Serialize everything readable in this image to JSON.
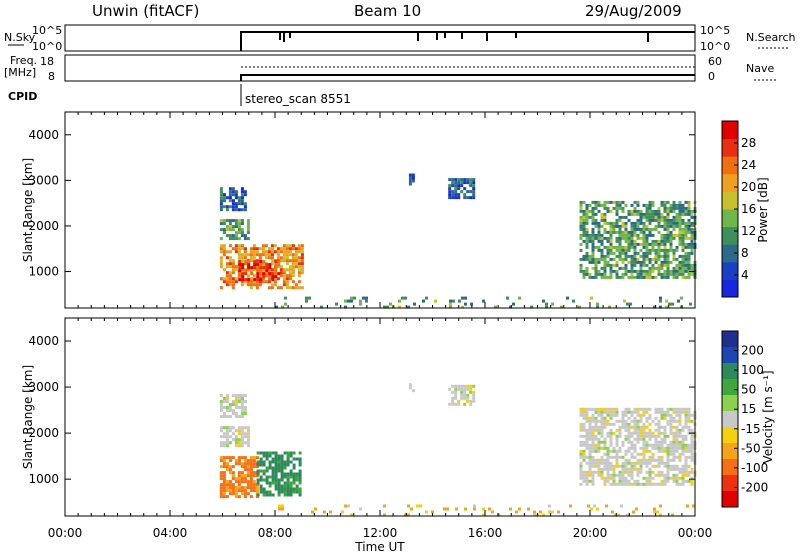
{
  "header": {
    "station": "Unwin (fitACF)",
    "beam": "Beam 10",
    "date": "29/Aug/2009"
  },
  "aux_panels": {
    "nsky_label": "N.Sky",
    "nsky_ticks": [
      "10^5",
      "10^0"
    ],
    "nsearch_label": "N.Search",
    "nsearch_ticks": [
      "10^5",
      "10^0"
    ],
    "freq_label": "Freq.",
    "freq_unit": "[MHz]",
    "freq_ticks": [
      "18",
      "8"
    ],
    "nave_label": "Nave",
    "nave_ticks": [
      "60",
      "0"
    ],
    "cpid_label": "CPID",
    "cpid_text": "stereo_scan 8551"
  },
  "colors": {
    "power_scale": [
      "#1528e0",
      "#1a3fc4",
      "#2b6a8a",
      "#3f8f5a",
      "#70b648",
      "#c8c02a",
      "#f0a020",
      "#f07010",
      "#e83010",
      "#e00000"
    ],
    "velocity_scale": [
      "#e00000",
      "#f03010",
      "#f57015",
      "#f7a31a",
      "#f3d010",
      "#c8c8c8",
      "#8bd14e",
      "#3ea63a",
      "#2d8a5b",
      "#1c46b0",
      "#1f2f8f"
    ],
    "frame": "#000000"
  },
  "chart_data": [
    {
      "type": "heatmap",
      "name": "power",
      "ylabel": "Slant Range [km]",
      "yticks": [
        "1000",
        "2000",
        "3000",
        "4000"
      ],
      "ylim": [
        200,
        4500
      ],
      "xlim": [
        0,
        24
      ],
      "colorbar": {
        "label": "Power [dB]",
        "ticks": [
          "4",
          "8",
          "12",
          "16",
          "20",
          "24",
          "28"
        ],
        "range": [
          0,
          32
        ]
      },
      "regions": [
        {
          "t0": 5.9,
          "t1": 7.0,
          "r0": 1750,
          "r1": 2150,
          "value": 12
        },
        {
          "t0": 5.9,
          "t1": 6.9,
          "r0": 2350,
          "r1": 2850,
          "value": 6
        },
        {
          "t0": 5.9,
          "t1": 9.0,
          "r0": 650,
          "r1": 1600,
          "value": 22
        },
        {
          "t0": 6.6,
          "t1": 8.2,
          "r0": 850,
          "r1": 1250,
          "value": 28
        },
        {
          "t0": 13.1,
          "t1": 13.3,
          "r0": 2900,
          "r1": 3150,
          "value": 4
        },
        {
          "t0": 14.6,
          "t1": 15.6,
          "r0": 2650,
          "r1": 3050,
          "value": 6
        },
        {
          "t0": 19.6,
          "t1": 24.0,
          "r0": 900,
          "r1": 2550,
          "value": 12
        },
        {
          "t0": 8.0,
          "t1": 24.0,
          "r0": 200,
          "r1": 450,
          "value": 12
        }
      ]
    },
    {
      "type": "heatmap",
      "name": "velocity",
      "xlabel": "Time UT",
      "ylabel": "Slant Range [km]",
      "yticks": [
        "1000",
        "2000",
        "3000",
        "4000"
      ],
      "ylim": [
        200,
        4500
      ],
      "xlim": [
        0,
        24
      ],
      "xticks": [
        "00:00",
        "04:00",
        "08:00",
        "12:00",
        "16:00",
        "20:00",
        "00:00"
      ],
      "colorbar": {
        "label": "Velocity [m s⁻¹]",
        "ticks": [
          "200",
          "100",
          "50",
          "15",
          "-15",
          "-50",
          "-100",
          "-200"
        ]
      },
      "regions": [
        {
          "t0": 5.9,
          "t1": 7.0,
          "r0": 1750,
          "r1": 2150,
          "value": 0
        },
        {
          "t0": 5.9,
          "t1": 6.9,
          "r0": 2350,
          "r1": 2850,
          "value": 0
        },
        {
          "t0": 5.9,
          "t1": 7.3,
          "r0": 650,
          "r1": 1500,
          "value": -60
        },
        {
          "t0": 7.3,
          "t1": 9.0,
          "r0": 650,
          "r1": 1600,
          "value": 60
        },
        {
          "t0": 13.1,
          "t1": 13.3,
          "r0": 2900,
          "r1": 3150,
          "value": 0
        },
        {
          "t0": 14.6,
          "t1": 15.6,
          "r0": 2650,
          "r1": 3050,
          "value": 0
        },
        {
          "t0": 19.6,
          "t1": 24.0,
          "r0": 900,
          "r1": 2550,
          "value": 0
        },
        {
          "t0": 8.0,
          "t1": 24.0,
          "r0": 200,
          "r1": 450,
          "value": -30
        }
      ]
    }
  ]
}
